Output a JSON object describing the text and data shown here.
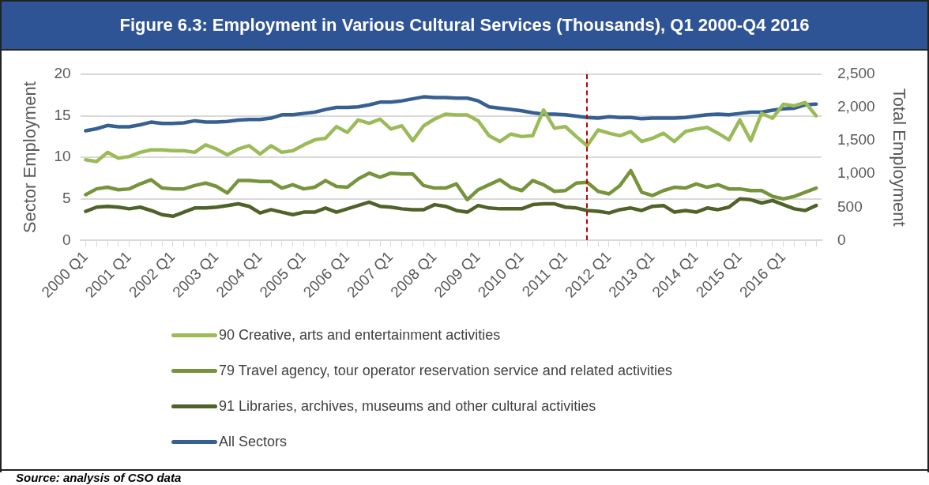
{
  "chart_data": {
    "type": "line",
    "title": "Figure 6.3: Employment in Various Cultural Services (Thousands), Q1 2000-Q4 2016",
    "ylabel": "Sector Employment",
    "y2label": "Total Employment",
    "categories": [
      "2000 Q1",
      null,
      null,
      null,
      "2001 Q1",
      null,
      null,
      null,
      "2002 Q1",
      null,
      null,
      null,
      "2003 Q1",
      null,
      null,
      null,
      "2004 Q1",
      null,
      null,
      null,
      "2005 Q1",
      null,
      null,
      null,
      "2006 Q1",
      null,
      null,
      null,
      "2007 Q1",
      null,
      null,
      null,
      "2008 Q1",
      null,
      null,
      null,
      "2009 Q1",
      null,
      null,
      null,
      "2010 Q1",
      null,
      null,
      null,
      "2011 Q1",
      null,
      null,
      null,
      "2012 Q1",
      null,
      null,
      null,
      "2013 Q1",
      null,
      null,
      null,
      "2014 Q1",
      null,
      null,
      null,
      "2015 Q1",
      null,
      null,
      null,
      "2016 Q1",
      null,
      null,
      null
    ],
    "series": [
      {
        "name": "90 Creative, arts and entertainment activities",
        "color": "#9bbb59",
        "values": [
          9.7,
          9.5,
          10.6,
          9.9,
          10.1,
          10.6,
          10.9,
          10.9,
          10.8,
          10.8,
          10.6,
          11.5,
          11.0,
          10.3,
          11.0,
          11.4,
          10.4,
          11.4,
          10.6,
          10.8,
          11.5,
          12.1,
          12.3,
          13.7,
          13.0,
          14.5,
          14.1,
          14.6,
          13.4,
          13.8,
          12.0,
          13.8,
          14.6,
          15.2,
          15.1,
          15.1,
          14.4,
          12.6,
          11.9,
          12.8,
          12.5,
          12.6,
          15.7,
          13.5,
          13.7,
          12.5,
          11.4,
          13.3,
          12.9,
          12.6,
          13.1,
          11.9,
          12.3,
          12.9,
          11.9,
          13.1,
          13.4,
          13.6,
          12.9,
          12.1,
          14.5,
          12.0,
          15.3,
          14.7,
          16.4,
          16.2,
          16.6,
          15.0
        ]
      },
      {
        "name": "79 Travel agency, tour operator reservation service and related activities",
        "color": "#77933c",
        "values": [
          5.5,
          6.2,
          6.4,
          6.1,
          6.2,
          6.8,
          7.3,
          6.3,
          6.2,
          6.2,
          6.6,
          6.9,
          6.5,
          5.7,
          7.2,
          7.2,
          7.1,
          7.1,
          6.3,
          6.7,
          6.2,
          6.4,
          7.2,
          6.5,
          6.4,
          7.4,
          8.1,
          7.6,
          8.1,
          8.0,
          8.0,
          6.6,
          6.3,
          6.3,
          6.8,
          4.9,
          6.1,
          6.7,
          7.3,
          6.4,
          6.0,
          7.2,
          6.7,
          5.9,
          6.0,
          6.9,
          7.0,
          5.9,
          5.6,
          6.6,
          8.4,
          5.8,
          5.4,
          6.0,
          6.4,
          6.3,
          6.8,
          6.4,
          6.7,
          6.2,
          6.2,
          6.0,
          6.0,
          5.3,
          5.0,
          5.3,
          5.8,
          6.3
        ]
      },
      {
        "name": "91 Libraries, archives, museums and other cultural activities",
        "color": "#4f6228",
        "values": [
          3.5,
          4.0,
          4.1,
          4.0,
          3.8,
          4.0,
          3.6,
          3.1,
          2.9,
          3.4,
          3.9,
          3.9,
          4.0,
          4.2,
          4.4,
          4.1,
          3.3,
          3.7,
          3.4,
          3.1,
          3.4,
          3.4,
          3.9,
          3.4,
          3.8,
          4.2,
          4.6,
          4.1,
          4.0,
          3.8,
          3.7,
          3.7,
          4.3,
          4.1,
          3.6,
          3.4,
          4.2,
          3.9,
          3.8,
          3.8,
          3.8,
          4.3,
          4.4,
          4.4,
          4.0,
          3.9,
          3.6,
          3.5,
          3.3,
          3.7,
          3.9,
          3.6,
          4.1,
          4.2,
          3.4,
          3.6,
          3.4,
          3.9,
          3.7,
          4.0,
          5.0,
          4.9,
          4.5,
          4.8,
          4.3,
          3.8,
          3.6,
          4.2
        ]
      },
      {
        "name": "All Sectors",
        "color": "#376092",
        "axis": "y2",
        "values": [
          1650,
          1680,
          1730,
          1710,
          1710,
          1740,
          1780,
          1760,
          1760,
          1770,
          1800,
          1780,
          1780,
          1790,
          1810,
          1820,
          1820,
          1840,
          1890,
          1890,
          1910,
          1930,
          1970,
          2000,
          2000,
          2010,
          2040,
          2080,
          2080,
          2100,
          2130,
          2160,
          2150,
          2150,
          2140,
          2140,
          2100,
          2010,
          1990,
          1970,
          1950,
          1920,
          1900,
          1900,
          1890,
          1870,
          1850,
          1840,
          1860,
          1850,
          1850,
          1830,
          1840,
          1840,
          1840,
          1850,
          1870,
          1890,
          1900,
          1890,
          1910,
          1930,
          1930,
          1960,
          1980,
          1990,
          2040,
          2050
        ]
      }
    ],
    "ylim": [
      0,
      20
    ],
    "yticks": [
      0,
      5,
      10,
      15,
      20
    ],
    "y2lim": [
      0,
      2500
    ],
    "y2ticks": [
      0,
      {
        "value": 500,
        "label": "500"
      },
      {
        "value": 1000,
        "label": "1,000"
      },
      {
        "value": 1500,
        "label": "1,500"
      },
      {
        "value": 2000,
        "label": "2,000"
      },
      {
        "value": 2500,
        "label": "2,500"
      }
    ],
    "grid": "y",
    "legend": "bottom",
    "marker": "none",
    "line_style": "solid",
    "annotations": [
      "Source: analysis of CSO data"
    ]
  }
}
